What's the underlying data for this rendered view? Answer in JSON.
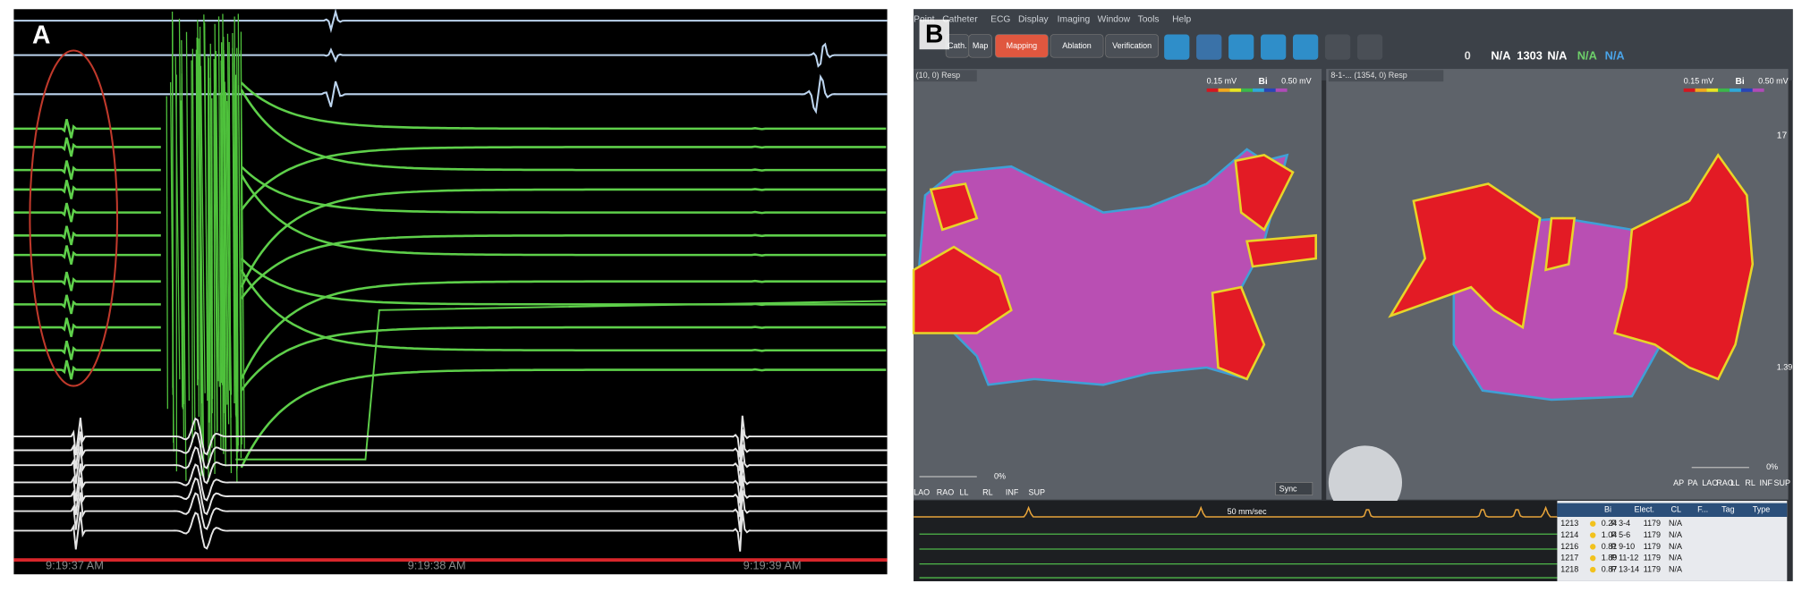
{
  "panel_a": {
    "label": "A",
    "timestamps": [
      "9:19:37 AM",
      "9:19:38 AM",
      "9:19:39 AM"
    ]
  },
  "panel_b": {
    "label": "B",
    "menu": [
      "Point",
      "Catheter",
      "ECG",
      "Display",
      "Imaging",
      "Window",
      "Tools",
      "Help"
    ],
    "toolbar": [
      "Cath.",
      "Map",
      "Mapping",
      "Ablation",
      "Verification"
    ],
    "status": [
      "0",
      "N/A",
      "1303",
      "N/A",
      "N/A",
      "N/A"
    ],
    "left_view": {
      "title": "(10, 0) Resp",
      "scale_min": "0.15 mV",
      "scale_label": "Bi",
      "scale_max": "0.50 mV",
      "zoom": "0%",
      "views": [
        "LAO",
        "RAO",
        "LL",
        "RL",
        "INF",
        "SUP"
      ],
      "sync": "Sync"
    },
    "right_view": {
      "title": "8-1-... (1354, 0) Resp",
      "scale_min": "0.15 mV",
      "scale_label": "Bi",
      "scale_max": "0.50 mV",
      "zoom": "0%",
      "views": [
        "AP",
        "PA",
        "LAO",
        "RAO",
        "LL",
        "RL",
        "INF",
        "SUP"
      ],
      "side_value": "17",
      "slider_value": "1.39"
    },
    "ecg_speed": "50 mm/sec",
    "table": {
      "columns": [
        "Bi",
        "Elect.",
        "CL",
        "F...",
        "Tag",
        "Type"
      ],
      "rows": [
        [
          "1213",
          "0.24",
          "P 3-4",
          "1179",
          "N/A"
        ],
        [
          "1214",
          "1.04",
          "P 5-6",
          "1179",
          "N/A"
        ],
        [
          "1216",
          "0.81",
          "P 9-10",
          "1179",
          "N/A"
        ],
        [
          "1217",
          "1.89",
          "P 11-12",
          "1179",
          "N/A"
        ],
        [
          "1218",
          "0.87",
          "P 13-14",
          "1179",
          "N/A"
        ]
      ]
    }
  }
}
